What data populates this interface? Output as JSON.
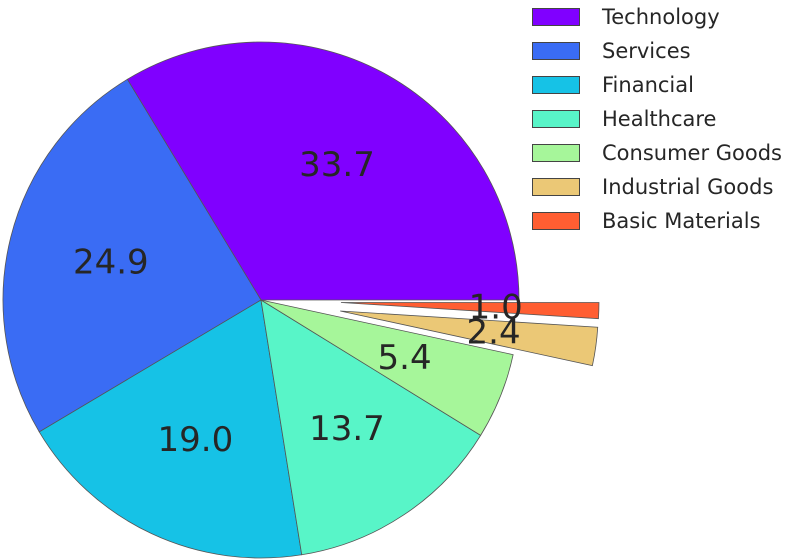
{
  "chart_data": {
    "type": "pie",
    "categories": [
      "Technology",
      "Services",
      "Financial",
      "Healthcare",
      "Consumer Goods",
      "Industrial Goods",
      "Basic Materials"
    ],
    "values": [
      33.7,
      24.9,
      19.0,
      13.7,
      5.4,
      2.4,
      1.0
    ],
    "value_labels": [
      "33.7",
      "24.9",
      "19.0",
      "13.7",
      "5.4",
      "2.4",
      "1.0"
    ],
    "colors": [
      "#8000ff",
      "#3a6cf4",
      "#16c2e6",
      "#58f5c8",
      "#a6f69a",
      "#ebc876",
      "#ff5e32"
    ],
    "exploded": [
      false,
      false,
      false,
      false,
      false,
      true,
      true
    ],
    "start_angle_deg": 0,
    "direction": "counterclockwise",
    "legend_position": "top-right",
    "title": ""
  }
}
